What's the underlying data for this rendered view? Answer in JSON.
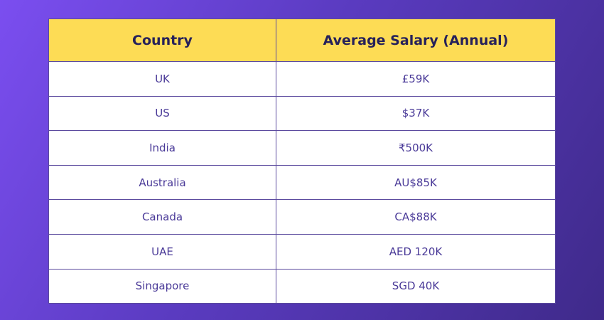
{
  "table": {
    "headers": [
      "Country",
      "Average Salary (Annual)"
    ],
    "rows": [
      [
        "UK",
        "£59K"
      ],
      [
        "US",
        "$37K"
      ],
      [
        "India",
        "₹500K"
      ],
      [
        "Australia",
        "AU$85K"
      ],
      [
        "Canada",
        "CA$88K"
      ],
      [
        "UAE",
        "AED 120K"
      ],
      [
        "Singapore",
        "SGD 40K"
      ]
    ]
  },
  "colors": {
    "header_bg": "#fddc55",
    "header_text": "#26215a",
    "cell_text": "#4a3a98",
    "background": "#5a3bc0"
  }
}
